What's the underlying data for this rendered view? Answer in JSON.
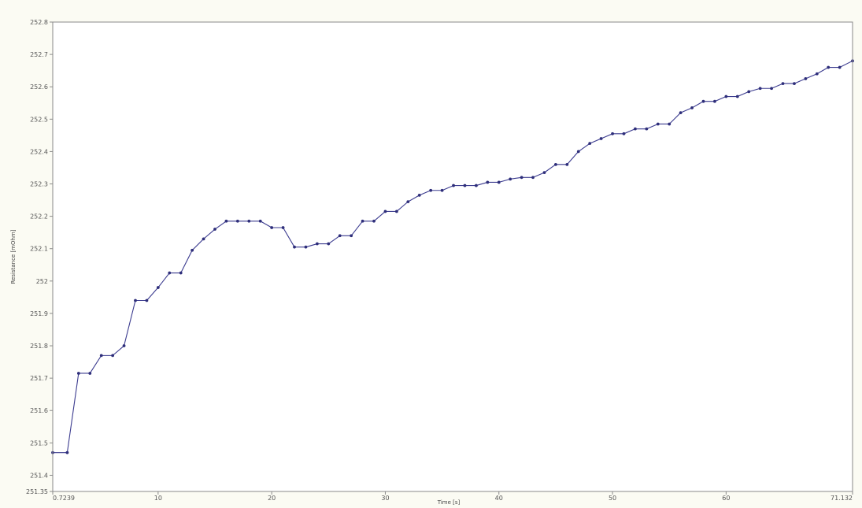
{
  "chart_data": {
    "type": "line",
    "title": "",
    "xlabel": "Time [s]",
    "ylabel": "Resistance [mOhm]",
    "xlim": [
      0.7239,
      71.132
    ],
    "ylim": [
      251.35,
      252.8
    ],
    "x_ticks": [
      0.7239,
      10,
      20,
      30,
      40,
      50,
      60,
      71.132
    ],
    "x_tick_labels": [
      "0.7239",
      "10",
      "20",
      "30",
      "40",
      "50",
      "60",
      "71.132"
    ],
    "y_ticks": [
      251.35,
      251.4,
      251.5,
      251.6,
      251.7,
      251.8,
      251.9,
      252.0,
      252.1,
      252.2,
      252.3,
      252.4,
      252.5,
      252.6,
      252.7,
      252.8
    ],
    "y_tick_labels": [
      "251.35",
      "251.4",
      "251.5",
      "251.6",
      "251.7",
      "251.8",
      "251.9",
      "252",
      "252.1",
      "252.2",
      "252.3",
      "252.4",
      "252.5",
      "252.6",
      "252.7",
      "252.8"
    ],
    "grid": false,
    "line_color": "#3b3b8f",
    "marker_color": "#2e2e7a",
    "plot_background": "#ffffff",
    "page_background": "#fbfbf3",
    "series": [
      {
        "x": [
          0.7239,
          2,
          3,
          4,
          5,
          6,
          7,
          8,
          9,
          10,
          11,
          12,
          13,
          14,
          15,
          16,
          17,
          18,
          19,
          20,
          21,
          22,
          23,
          24,
          25,
          26,
          27,
          28,
          29,
          30,
          31,
          32,
          33,
          34,
          35,
          36,
          37,
          38,
          39,
          40,
          41,
          42,
          43,
          44,
          45,
          46,
          47,
          48,
          49,
          50,
          51,
          52,
          53,
          54,
          55,
          56,
          57,
          58,
          59,
          60,
          61,
          62,
          63,
          64,
          65,
          66,
          67,
          68,
          69,
          70,
          71.132
        ],
        "y": [
          251.47,
          251.47,
          251.715,
          251.715,
          251.77,
          251.77,
          251.8,
          251.94,
          251.94,
          251.98,
          252.025,
          252.025,
          252.095,
          252.13,
          252.16,
          252.185,
          252.185,
          252.185,
          252.185,
          252.165,
          252.165,
          252.105,
          252.105,
          252.115,
          252.115,
          252.14,
          252.14,
          252.185,
          252.185,
          252.215,
          252.215,
          252.245,
          252.265,
          252.28,
          252.28,
          252.295,
          252.295,
          252.295,
          252.305,
          252.305,
          252.315,
          252.32,
          252.32,
          252.335,
          252.36,
          252.36,
          252.4,
          252.425,
          252.44,
          252.455,
          252.455,
          252.47,
          252.47,
          252.485,
          252.485,
          252.52,
          252.535,
          252.555,
          252.555,
          252.57,
          252.57,
          252.585,
          252.595,
          252.595,
          252.61,
          252.61,
          252.625,
          252.64,
          252.66,
          252.66,
          252.68
        ]
      }
    ]
  }
}
